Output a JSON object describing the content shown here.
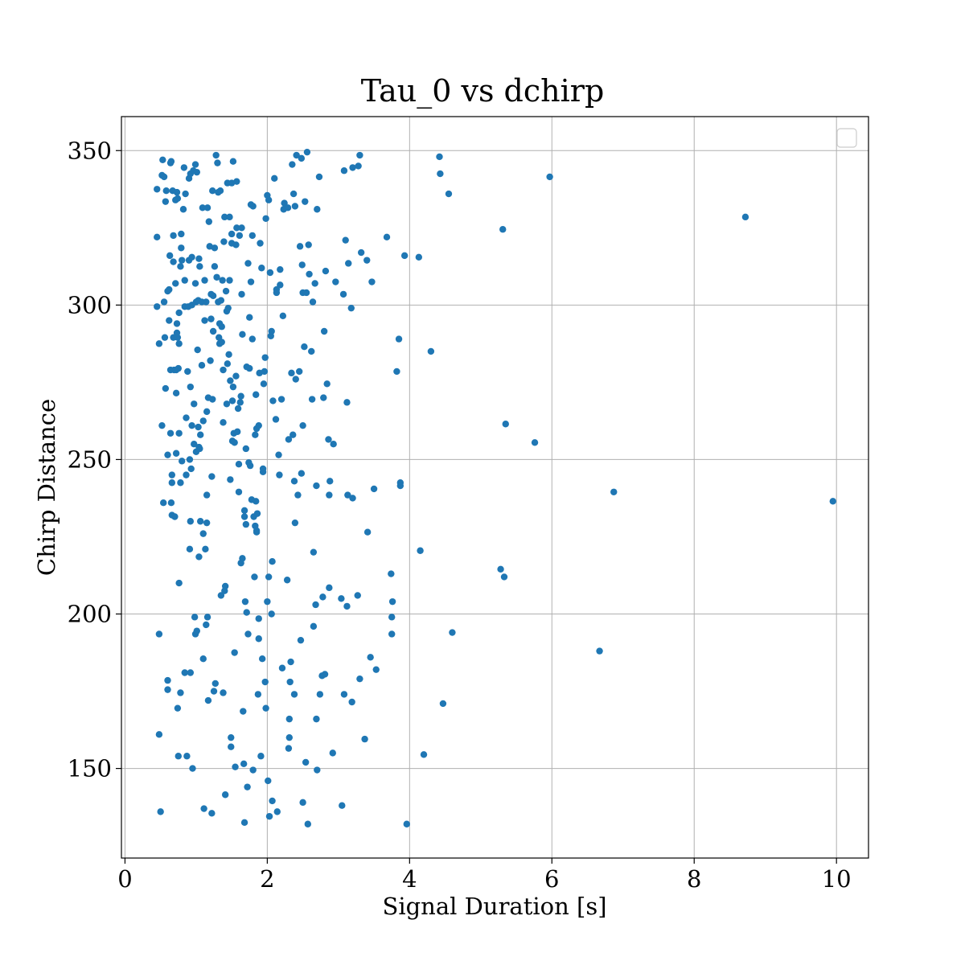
{
  "chart_data": {
    "type": "scatter",
    "title": "Tau_0 vs dchirp",
    "xlabel": "Signal Duration [s]",
    "ylabel": "Chirp Distance",
    "xlim": [
      -0.05,
      10.45
    ],
    "ylim": [
      121,
      361
    ],
    "xticks": [
      0,
      2,
      4,
      6,
      8,
      10
    ],
    "yticks": [
      150,
      200,
      250,
      300,
      350
    ],
    "grid": true,
    "legend": "upper right (empty)",
    "color": "#1f77b4",
    "points": [
      [
        0.45,
        337.5
      ],
      [
        0.45,
        322.0
      ],
      [
        0.45,
        299.5
      ],
      [
        0.48,
        287.5
      ],
      [
        0.48,
        193.5
      ],
      [
        0.48,
        161.0
      ],
      [
        0.5,
        136.0
      ],
      [
        0.52,
        342.0
      ],
      [
        0.52,
        261.0
      ],
      [
        0.53,
        347.0
      ],
      [
        0.54,
        236.0
      ],
      [
        0.55,
        341.5
      ],
      [
        0.55,
        301.0
      ],
      [
        0.56,
        289.5
      ],
      [
        0.57,
        333.5
      ],
      [
        0.57,
        273.0
      ],
      [
        0.58,
        337.0
      ],
      [
        0.6,
        304.5
      ],
      [
        0.6,
        251.5
      ],
      [
        0.6,
        178.5
      ],
      [
        0.6,
        175.5
      ],
      [
        0.62,
        305.0
      ],
      [
        0.62,
        295.0
      ],
      [
        0.63,
        316.0
      ],
      [
        0.64,
        346.0
      ],
      [
        0.64,
        279.0
      ],
      [
        0.64,
        258.5
      ],
      [
        0.65,
        346.5
      ],
      [
        0.65,
        236.0
      ],
      [
        0.66,
        245.0
      ],
      [
        0.66,
        242.5
      ],
      [
        0.66,
        232.0
      ],
      [
        0.67,
        337.0
      ],
      [
        0.68,
        322.5
      ],
      [
        0.68,
        314.0
      ],
      [
        0.68,
        289.5
      ],
      [
        0.69,
        279.0
      ],
      [
        0.7,
        231.5
      ],
      [
        0.71,
        334.0
      ],
      [
        0.71,
        307.0
      ],
      [
        0.72,
        279.0
      ],
      [
        0.72,
        271.5
      ],
      [
        0.72,
        252.0
      ],
      [
        0.73,
        336.5
      ],
      [
        0.73,
        294.0
      ],
      [
        0.73,
        291.0
      ],
      [
        0.74,
        334.5
      ],
      [
        0.74,
        289.5
      ],
      [
        0.74,
        169.5
      ],
      [
        0.75,
        279.5
      ],
      [
        0.75,
        154.0
      ],
      [
        0.76,
        297.5
      ],
      [
        0.76,
        287.5
      ],
      [
        0.76,
        258.5
      ],
      [
        0.76,
        210.0
      ],
      [
        0.78,
        312.5
      ],
      [
        0.78,
        242.5
      ],
      [
        0.78,
        174.5
      ],
      [
        0.79,
        323.0
      ],
      [
        0.79,
        318.5
      ],
      [
        0.8,
        314.5
      ],
      [
        0.8,
        249.5
      ],
      [
        0.82,
        331.0
      ],
      [
        0.83,
        344.5
      ],
      [
        0.84,
        308.0
      ],
      [
        0.84,
        299.5
      ],
      [
        0.84,
        181.0
      ],
      [
        0.85,
        336.0
      ],
      [
        0.86,
        263.5
      ],
      [
        0.86,
        245.0
      ],
      [
        0.87,
        154.0
      ],
      [
        0.88,
        278.5
      ],
      [
        0.89,
        299.5
      ],
      [
        0.9,
        341.0
      ],
      [
        0.9,
        314.5
      ],
      [
        0.91,
        250.0
      ],
      [
        0.91,
        221.0
      ],
      [
        0.92,
        342.5
      ],
      [
        0.92,
        273.5
      ],
      [
        0.92,
        230.0
      ],
      [
        0.92,
        181.0
      ],
      [
        0.93,
        247.0
      ],
      [
        0.94,
        315.5
      ],
      [
        0.94,
        300.0
      ],
      [
        0.94,
        261.0
      ],
      [
        0.95,
        150.0
      ],
      [
        0.96,
        343.5
      ],
      [
        0.97,
        268.0
      ],
      [
        0.97,
        255.0
      ],
      [
        0.98,
        199.0
      ],
      [
        0.99,
        345.5
      ],
      [
        0.99,
        307.0
      ],
      [
        0.99,
        193.5
      ],
      [
        1.0,
        301.0
      ],
      [
        1.0,
        252.5
      ],
      [
        1.01,
        343.0
      ],
      [
        1.01,
        194.5
      ],
      [
        1.02,
        285.5
      ],
      [
        1.03,
        301.5
      ],
      [
        1.03,
        260.5
      ],
      [
        1.04,
        315.0
      ],
      [
        1.04,
        254.0
      ],
      [
        1.04,
        218.5
      ],
      [
        1.05,
        312.5
      ],
      [
        1.05,
        253.5
      ],
      [
        1.06,
        258.0
      ],
      [
        1.06,
        230.0
      ],
      [
        1.08,
        301.0
      ],
      [
        1.08,
        280.5
      ],
      [
        1.09,
        331.5
      ],
      [
        1.1,
        262.5
      ],
      [
        1.1,
        226.0
      ],
      [
        1.1,
        185.5
      ],
      [
        1.11,
        137.0
      ],
      [
        1.12,
        308.0
      ],
      [
        1.12,
        295.0
      ],
      [
        1.13,
        221.0
      ],
      [
        1.14,
        301.0
      ],
      [
        1.14,
        196.5
      ],
      [
        1.15,
        265.5
      ],
      [
        1.15,
        238.5
      ],
      [
        1.15,
        229.5
      ],
      [
        1.16,
        331.5
      ],
      [
        1.16,
        199.0
      ],
      [
        1.17,
        270.0
      ],
      [
        1.17,
        172.0
      ],
      [
        1.18,
        327.0
      ],
      [
        1.19,
        319.0
      ],
      [
        1.2,
        282.0
      ],
      [
        1.21,
        303.5
      ],
      [
        1.21,
        295.5
      ],
      [
        1.22,
        244.5
      ],
      [
        1.22,
        135.5
      ],
      [
        1.23,
        337.0
      ],
      [
        1.23,
        269.5
      ],
      [
        1.24,
        303.0
      ],
      [
        1.24,
        291.5
      ],
      [
        1.25,
        175.0
      ],
      [
        1.26,
        312.5
      ],
      [
        1.26,
        318.5
      ],
      [
        1.27,
        177.5
      ],
      [
        1.28,
        348.5
      ],
      [
        1.29,
        309.0
      ],
      [
        1.3,
        346.0
      ],
      [
        1.31,
        336.5
      ],
      [
        1.31,
        301.0
      ],
      [
        1.32,
        289.5
      ],
      [
        1.33,
        294.0
      ],
      [
        1.33,
        287.5
      ],
      [
        1.34,
        337.0
      ],
      [
        1.35,
        301.5
      ],
      [
        1.35,
        206.0
      ],
      [
        1.36,
        293.0
      ],
      [
        1.36,
        288.0
      ],
      [
        1.37,
        308.0
      ],
      [
        1.38,
        279.0
      ],
      [
        1.38,
        262.0
      ],
      [
        1.38,
        174.5
      ],
      [
        1.39,
        320.5
      ],
      [
        1.4,
        328.5
      ],
      [
        1.4,
        207.5
      ],
      [
        1.41,
        209.0
      ],
      [
        1.41,
        141.5
      ],
      [
        1.42,
        304.5
      ],
      [
        1.43,
        298.0
      ],
      [
        1.43,
        268.0
      ],
      [
        1.44,
        339.5
      ],
      [
        1.44,
        281.0
      ],
      [
        1.45,
        299.0
      ],
      [
        1.46,
        284.0
      ],
      [
        1.47,
        328.5
      ],
      [
        1.47,
        308.0
      ],
      [
        1.48,
        275.5
      ],
      [
        1.48,
        243.5
      ],
      [
        1.49,
        160.0
      ],
      [
        1.49,
        157.0
      ],
      [
        1.5,
        339.5
      ],
      [
        1.5,
        323.0
      ],
      [
        1.5,
        320.0
      ],
      [
        1.51,
        269.0
      ],
      [
        1.51,
        256.0
      ],
      [
        1.52,
        346.5
      ],
      [
        1.52,
        273.5
      ],
      [
        1.53,
        258.5
      ],
      [
        1.54,
        255.5
      ],
      [
        1.54,
        187.5
      ],
      [
        1.55,
        150.5
      ],
      [
        1.56,
        319.5
      ],
      [
        1.56,
        277.0
      ],
      [
        1.57,
        340.0
      ],
      [
        1.57,
        325.0
      ],
      [
        1.58,
        259.0
      ],
      [
        1.59,
        266.5
      ],
      [
        1.6,
        248.5
      ],
      [
        1.6,
        239.5
      ],
      [
        1.61,
        322.5
      ],
      [
        1.62,
        268.5
      ],
      [
        1.63,
        270.5
      ],
      [
        1.63,
        216.5
      ],
      [
        1.64,
        325.0
      ],
      [
        1.64,
        303.5
      ],
      [
        1.65,
        290.5
      ],
      [
        1.65,
        218.0
      ],
      [
        1.66,
        168.5
      ],
      [
        1.67,
        151.5
      ],
      [
        1.68,
        233.5
      ],
      [
        1.68,
        231.5
      ],
      [
        1.68,
        132.5
      ],
      [
        1.69,
        204.0
      ],
      [
        1.7,
        253.5
      ],
      [
        1.7,
        229.0
      ],
      [
        1.71,
        280.0
      ],
      [
        1.71,
        200.5
      ],
      [
        1.72,
        144.0
      ],
      [
        1.73,
        313.5
      ],
      [
        1.73,
        193.5
      ],
      [
        1.74,
        249.0
      ],
      [
        1.75,
        296.0
      ],
      [
        1.75,
        279.5
      ],
      [
        1.76,
        248.0
      ],
      [
        1.77,
        332.5
      ],
      [
        1.77,
        307.5
      ],
      [
        1.78,
        237.0
      ],
      [
        1.79,
        322.5
      ],
      [
        1.79,
        289.0
      ],
      [
        1.8,
        332.0
      ],
      [
        1.8,
        149.5
      ],
      [
        1.81,
        231.5
      ],
      [
        1.82,
        212.0
      ],
      [
        1.83,
        258.0
      ],
      [
        1.83,
        228.5
      ],
      [
        1.84,
        271.0
      ],
      [
        1.84,
        236.5
      ],
      [
        1.85,
        227.0
      ],
      [
        1.85,
        226.5
      ],
      [
        1.85,
        260.0
      ],
      [
        1.86,
        232.5
      ],
      [
        1.87,
        174.0
      ],
      [
        1.88,
        261.0
      ],
      [
        1.88,
        198.5
      ],
      [
        1.88,
        192.0
      ],
      [
        1.89,
        278.0
      ],
      [
        1.9,
        320.0
      ],
      [
        1.91,
        154.0
      ],
      [
        1.92,
        312.0
      ],
      [
        1.93,
        185.5
      ],
      [
        1.94,
        247.0
      ],
      [
        1.94,
        246.0
      ],
      [
        1.95,
        274.5
      ],
      [
        1.96,
        278.5
      ],
      [
        1.97,
        283.0
      ],
      [
        1.97,
        178.0
      ],
      [
        1.98,
        328.0
      ],
      [
        1.98,
        169.5
      ],
      [
        2.0,
        335.5
      ],
      [
        2.0,
        204.0
      ],
      [
        2.01,
        146.0
      ],
      [
        2.02,
        334.0
      ],
      [
        2.02,
        212.0
      ],
      [
        2.03,
        134.5
      ],
      [
        2.04,
        310.5
      ],
      [
        2.05,
        290.0
      ],
      [
        2.06,
        291.5
      ],
      [
        2.06,
        200.0
      ],
      [
        2.07,
        217.0
      ],
      [
        2.07,
        139.5
      ],
      [
        2.08,
        269.0
      ],
      [
        2.1,
        341.0
      ],
      [
        2.12,
        263.0
      ],
      [
        2.13,
        305.0
      ],
      [
        2.13,
        304.0
      ],
      [
        2.14,
        136.0
      ],
      [
        2.16,
        251.5
      ],
      [
        2.17,
        245.0
      ],
      [
        2.18,
        306.5
      ],
      [
        2.18,
        311.5
      ],
      [
        2.2,
        269.5
      ],
      [
        2.21,
        182.5
      ],
      [
        2.22,
        296.5
      ],
      [
        2.23,
        331.0
      ],
      [
        2.24,
        333.0
      ],
      [
        2.28,
        211.0
      ],
      [
        2.29,
        331.5
      ],
      [
        2.3,
        256.5
      ],
      [
        2.3,
        156.5
      ],
      [
        2.31,
        166.0
      ],
      [
        2.31,
        160.0
      ],
      [
        2.32,
        178.0
      ],
      [
        2.33,
        184.5
      ],
      [
        2.34,
        278.0
      ],
      [
        2.35,
        345.5
      ],
      [
        2.36,
        258.0
      ],
      [
        2.37,
        336.0
      ],
      [
        2.38,
        174.0
      ],
      [
        2.38,
        243.0
      ],
      [
        2.39,
        332.0
      ],
      [
        2.39,
        229.5
      ],
      [
        2.4,
        276.0
      ],
      [
        2.41,
        348.5
      ],
      [
        2.43,
        238.5
      ],
      [
        2.45,
        278.5
      ],
      [
        2.46,
        319.0
      ],
      [
        2.47,
        191.5
      ],
      [
        2.48,
        245.5
      ],
      [
        2.48,
        347.5
      ],
      [
        2.49,
        313.0
      ],
      [
        2.5,
        261.0
      ],
      [
        2.5,
        304.0
      ],
      [
        2.5,
        139.0
      ],
      [
        2.52,
        286.5
      ],
      [
        2.53,
        333.5
      ],
      [
        2.54,
        152.0
      ],
      [
        2.55,
        304.0
      ],
      [
        2.56,
        349.5
      ],
      [
        2.57,
        132.0
      ],
      [
        2.58,
        319.5
      ],
      [
        2.59,
        310.0
      ],
      [
        2.62,
        285.0
      ],
      [
        2.63,
        269.5
      ],
      [
        2.64,
        301.0
      ],
      [
        2.65,
        196.0
      ],
      [
        2.65,
        220.0
      ],
      [
        2.67,
        307.0
      ],
      [
        2.68,
        203.0
      ],
      [
        2.69,
        241.5
      ],
      [
        2.69,
        166.0
      ],
      [
        2.7,
        331.0
      ],
      [
        2.7,
        149.5
      ],
      [
        2.73,
        341.5
      ],
      [
        2.74,
        174.0
      ],
      [
        2.77,
        180.0
      ],
      [
        2.78,
        205.5
      ],
      [
        2.79,
        270.0
      ],
      [
        2.8,
        291.5
      ],
      [
        2.81,
        180.5
      ],
      [
        2.82,
        311.0
      ],
      [
        2.84,
        274.5
      ],
      [
        2.86,
        256.5
      ],
      [
        2.87,
        208.5
      ],
      [
        2.87,
        238.5
      ],
      [
        2.88,
        243.0
      ],
      [
        2.92,
        155.0
      ],
      [
        2.93,
        255.0
      ],
      [
        2.96,
        307.5
      ],
      [
        3.04,
        205.0
      ],
      [
        3.05,
        138.0
      ],
      [
        3.07,
        303.5
      ],
      [
        3.08,
        343.5
      ],
      [
        3.08,
        174.0
      ],
      [
        3.1,
        321.0
      ],
      [
        3.12,
        268.5
      ],
      [
        3.12,
        202.5
      ],
      [
        3.13,
        238.5
      ],
      [
        3.14,
        313.5
      ],
      [
        3.18,
        299.0
      ],
      [
        3.19,
        171.5
      ],
      [
        3.2,
        237.5
      ],
      [
        3.2,
        344.5
      ],
      [
        3.27,
        206.0
      ],
      [
        3.28,
        345.0
      ],
      [
        3.3,
        348.5
      ],
      [
        3.3,
        179.0
      ],
      [
        3.32,
        317.0
      ],
      [
        3.37,
        159.5
      ],
      [
        3.4,
        314.5
      ],
      [
        3.41,
        226.5
      ],
      [
        3.45,
        186.0
      ],
      [
        3.47,
        307.5
      ],
      [
        3.5,
        240.5
      ],
      [
        3.53,
        182.0
      ],
      [
        3.68,
        322.0
      ],
      [
        3.74,
        213.0
      ],
      [
        3.75,
        199.0
      ],
      [
        3.75,
        193.5
      ],
      [
        3.76,
        204.0
      ],
      [
        3.82,
        278.5
      ],
      [
        3.85,
        289.0
      ],
      [
        3.87,
        242.5
      ],
      [
        3.87,
        241.5
      ],
      [
        3.93,
        316.0
      ],
      [
        3.96,
        132.0
      ],
      [
        4.13,
        315.5
      ],
      [
        4.15,
        220.5
      ],
      [
        4.2,
        154.5
      ],
      [
        4.3,
        285.0
      ],
      [
        4.42,
        348.0
      ],
      [
        4.43,
        342.5
      ],
      [
        4.47,
        171.0
      ],
      [
        4.55,
        336.0
      ],
      [
        4.6,
        194.0
      ],
      [
        5.28,
        214.5
      ],
      [
        5.31,
        324.5
      ],
      [
        5.33,
        212.0
      ],
      [
        5.35,
        261.5
      ],
      [
        5.76,
        255.5
      ],
      [
        5.97,
        341.5
      ],
      [
        6.67,
        188.0
      ],
      [
        6.87,
        239.5
      ],
      [
        8.72,
        328.5
      ],
      [
        9.95,
        236.5
      ]
    ]
  }
}
